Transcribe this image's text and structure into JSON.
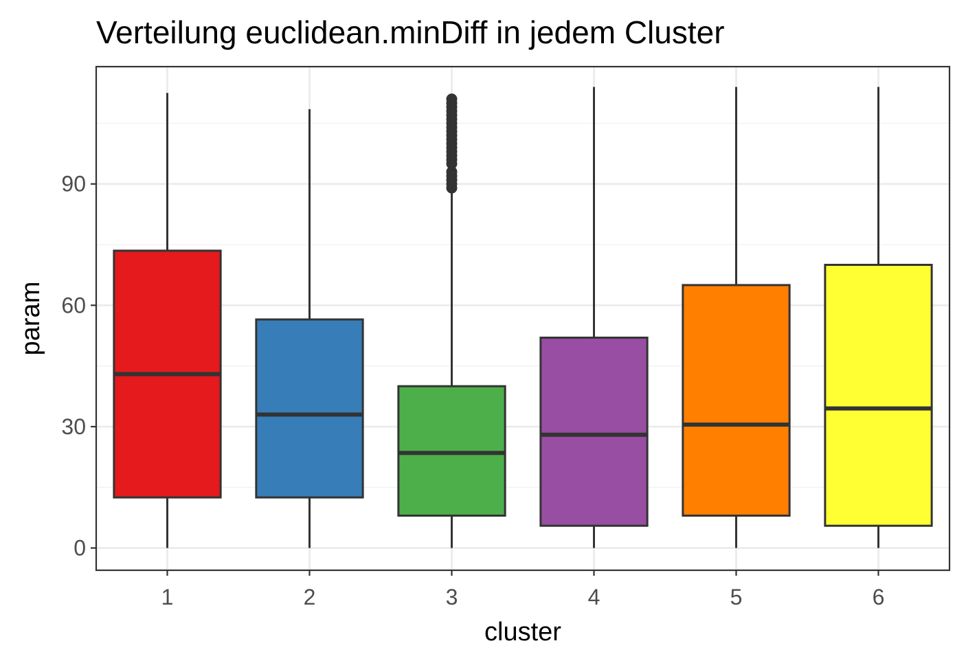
{
  "chart_data": {
    "type": "boxplot",
    "title": "Verteilung euclidean.minDiff in jedem Cluster",
    "xlabel": "cluster",
    "ylabel": "param",
    "categories": [
      "1",
      "2",
      "3",
      "4",
      "5",
      "6"
    ],
    "ylim": [
      -5.5,
      119
    ],
    "y_ticks": [
      0,
      30,
      60,
      90
    ],
    "y_tick_labels": [
      "0",
      "30",
      "60",
      "90"
    ],
    "grid": true,
    "legend": "none",
    "boxes": [
      {
        "category": "1",
        "min": 0,
        "q1": 12.5,
        "median": 43,
        "q3": 73.5,
        "max": 112.5,
        "outliers": [],
        "color": "#E41A1C"
      },
      {
        "category": "2",
        "min": 0,
        "q1": 12.5,
        "median": 33,
        "q3": 56.5,
        "max": 108.5,
        "outliers": [],
        "color": "#377EB8"
      },
      {
        "category": "3",
        "min": 0,
        "q1": 8,
        "median": 23.5,
        "q3": 40,
        "max": 88.5,
        "outliers": [
          89,
          90,
          91,
          92,
          93,
          95,
          96,
          97,
          98,
          99,
          100,
          101,
          102,
          103,
          104,
          105,
          106,
          107,
          108,
          109,
          110,
          111
        ],
        "color": "#4DAF4A"
      },
      {
        "category": "4",
        "min": 0,
        "q1": 5.5,
        "median": 28,
        "q3": 52,
        "max": 114,
        "outliers": [],
        "color": "#984EA3"
      },
      {
        "category": "5",
        "min": 0,
        "q1": 8,
        "median": 30.5,
        "q3": 65,
        "max": 114,
        "outliers": [],
        "color": "#FF7F00"
      },
      {
        "category": "6",
        "min": 0,
        "q1": 5.5,
        "median": 34.5,
        "q3": 70,
        "max": 114,
        "outliers": [],
        "color": "#FFFF33"
      }
    ]
  }
}
